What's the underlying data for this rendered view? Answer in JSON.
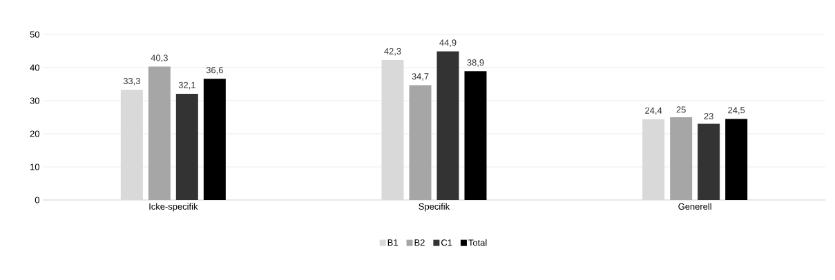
{
  "chart_data": {
    "type": "bar",
    "categories": [
      "Icke-specifik",
      "Specifik",
      "Generell"
    ],
    "series": [
      {
        "name": "B1",
        "color": "#d9d9d9",
        "values": [
          33.3,
          42.3,
          24.4
        ],
        "value_labels": [
          "33,3",
          "42,3",
          "24,4"
        ]
      },
      {
        "name": "B2",
        "color": "#a6a6a6",
        "values": [
          40.3,
          34.7,
          25
        ],
        "value_labels": [
          "40,3",
          "34,7",
          "25"
        ]
      },
      {
        "name": "C1",
        "color": "#333333",
        "values": [
          32.1,
          44.9,
          23
        ],
        "value_labels": [
          "32,1",
          "44,9",
          "23"
        ]
      },
      {
        "name": "Total",
        "color": "#000000",
        "values": [
          36.6,
          38.9,
          24.5
        ],
        "value_labels": [
          "36,6",
          "38,9",
          "24,5"
        ]
      }
    ],
    "ylim": [
      0,
      50
    ],
    "yticks": [
      0,
      10,
      20,
      30,
      40,
      50
    ],
    "grid": "y",
    "legend": "bottom"
  }
}
